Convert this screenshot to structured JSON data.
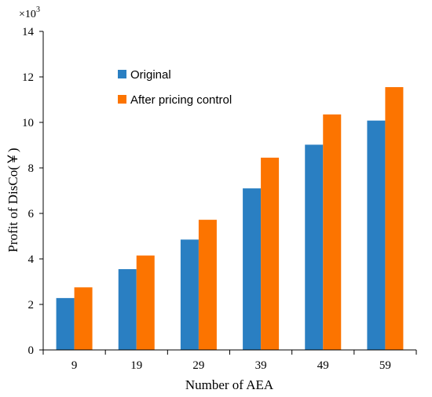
{
  "chart_data": {
    "type": "bar",
    "title": "",
    "xlabel": "Number of AEA",
    "ylabel": "Profit of DisCo(￥)",
    "y_multiplier": {
      "base": "×10",
      "exponent": "3"
    },
    "ylim": [
      0,
      14
    ],
    "yticks": [
      0,
      2,
      4,
      6,
      8,
      10,
      12,
      14
    ],
    "categories": [
      "9",
      "19",
      "29",
      "39",
      "49",
      "59"
    ],
    "series": [
      {
        "name": "Original",
        "color": "#2a7fc2",
        "values": [
          2.28,
          3.55,
          4.85,
          7.1,
          9.02,
          10.08
        ]
      },
      {
        "name": "After pricing control",
        "color": "#fc7400",
        "values": [
          2.75,
          4.15,
          5.72,
          8.45,
          10.35,
          11.55
        ]
      }
    ],
    "legend_position": "top-left",
    "grid": false
  }
}
